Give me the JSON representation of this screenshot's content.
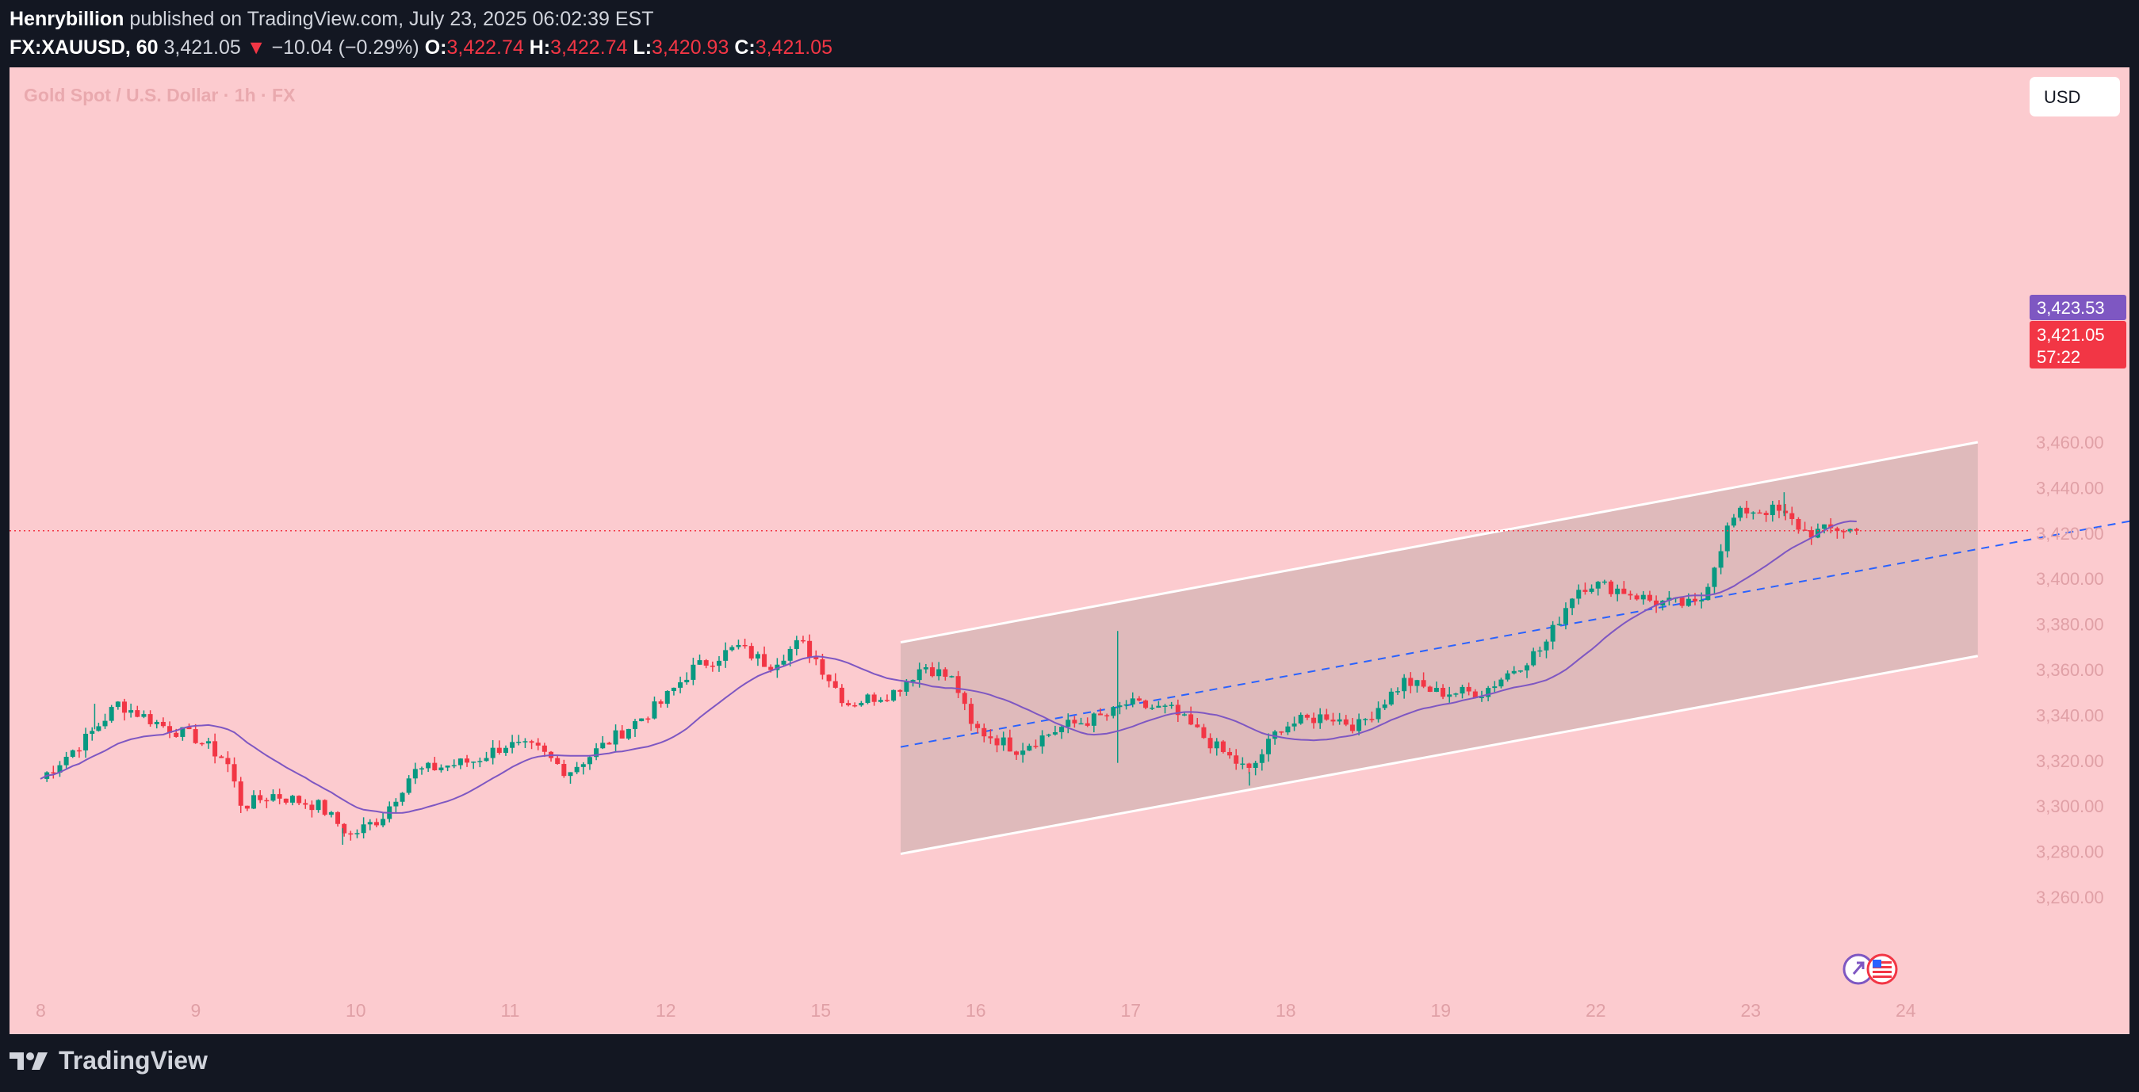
{
  "header": {
    "author": "Henrybillion",
    "published_text": "published on TradingView.com, July 23, 2025 06:02:39 EST",
    "symbol": "FX:XAUUSD, 60",
    "last": "3,421.05",
    "change": "−10.04 (−0.29%)",
    "o_label": "O:",
    "o_value": "3,422.74",
    "h_label": "H:",
    "h_value": "3,422.74",
    "l_label": "L:",
    "l_value": "3,420.93",
    "c_label": "C:",
    "c_value": "3,421.05"
  },
  "chart_title": "Gold Spot / U.S. Dollar · 1h · FX",
  "currency_button": "USD",
  "price_labels": {
    "ma_value": "3,423.53",
    "last_price": "3,421.05",
    "countdown": "57:22"
  },
  "branding": "TradingView",
  "colors": {
    "background": "#fccbcf",
    "outer": "#131722",
    "up": "#089981",
    "down": "#f23645",
    "ma_line": "#7e57c2",
    "channel_fill": "#dbb8b8",
    "midline": "#2962ff",
    "ma_badge": "#7e57c2",
    "last_badge": "#f23645"
  },
  "chart_data": {
    "type": "candlestick",
    "title": "Gold Spot / U.S. Dollar · 1h · FX",
    "yaxis_ticks": [
      3260,
      3280,
      3300,
      3320,
      3340,
      3360,
      3380,
      3400,
      3420,
      3440,
      3460
    ],
    "ytick_labels": [
      "3,260.00",
      "3,280.00",
      "3,300.00",
      "3,320.00",
      "3,340.00",
      "3,360.00",
      "3,380.00",
      "3,400.00",
      "3,420.00",
      "3,440.00",
      "3,460.00"
    ],
    "ylim": [
      3253,
      3475
    ],
    "xtick_labels": [
      "8",
      "9",
      "10",
      "11",
      "12",
      "15",
      "16",
      "17",
      "18",
      "19",
      "22",
      "23",
      "24"
    ],
    "price_path": [
      {
        "day": 0.0,
        "price": 3312
      },
      {
        "day": 0.3,
        "price": 3330
      },
      {
        "day": 0.5,
        "price": 3345
      },
      {
        "day": 0.8,
        "price": 3335
      },
      {
        "day": 1.0,
        "price": 3330
      },
      {
        "day": 1.2,
        "price": 3320
      },
      {
        "day": 1.3,
        "price": 3300
      },
      {
        "day": 1.5,
        "price": 3305
      },
      {
        "day": 1.8,
        "price": 3300
      },
      {
        "day": 2.0,
        "price": 3287
      },
      {
        "day": 2.2,
        "price": 3295
      },
      {
        "day": 2.4,
        "price": 3315
      },
      {
        "day": 2.8,
        "price": 3320
      },
      {
        "day": 3.0,
        "price": 3327
      },
      {
        "day": 3.2,
        "price": 3325
      },
      {
        "day": 3.4,
        "price": 3315
      },
      {
        "day": 3.7,
        "price": 3330
      },
      {
        "day": 4.0,
        "price": 3345
      },
      {
        "day": 4.2,
        "price": 3360
      },
      {
        "day": 4.5,
        "price": 3370
      },
      {
        "day": 4.7,
        "price": 3362
      },
      {
        "day": 4.9,
        "price": 3372
      },
      {
        "day": 5.0,
        "price": 3365
      },
      {
        "day": 5.2,
        "price": 3345
      },
      {
        "day": 5.5,
        "price": 3350
      },
      {
        "day": 5.7,
        "price": 3362
      },
      {
        "day": 5.9,
        "price": 3355
      },
      {
        "day": 6.0,
        "price": 3335
      },
      {
        "day": 6.3,
        "price": 3325
      },
      {
        "day": 6.6,
        "price": 3335
      },
      {
        "day": 6.9,
        "price": 3340
      },
      {
        "day": 7.0,
        "price": 3345
      },
      {
        "day": 7.3,
        "price": 3342
      },
      {
        "day": 7.6,
        "price": 3325
      },
      {
        "day": 7.8,
        "price": 3315
      },
      {
        "day": 8.0,
        "price": 3335
      },
      {
        "day": 8.3,
        "price": 3340
      },
      {
        "day": 8.5,
        "price": 3335
      },
      {
        "day": 8.8,
        "price": 3355
      },
      {
        "day": 9.0,
        "price": 3350
      },
      {
        "day": 9.3,
        "price": 3350
      },
      {
        "day": 9.5,
        "price": 3360
      },
      {
        "day": 9.7,
        "price": 3370
      },
      {
        "day": 9.9,
        "price": 3395
      },
      {
        "day": 10.0,
        "price": 3398
      },
      {
        "day": 10.2,
        "price": 3395
      },
      {
        "day": 10.4,
        "price": 3390
      },
      {
        "day": 10.7,
        "price": 3388
      },
      {
        "day": 10.9,
        "price": 3425
      },
      {
        "day": 11.0,
        "price": 3430
      },
      {
        "day": 11.2,
        "price": 3430
      },
      {
        "day": 11.4,
        "price": 3420
      },
      {
        "day": 11.6,
        "price": 3422
      },
      {
        "day": 11.75,
        "price": 3421
      }
    ],
    "notable_extremes": {
      "high_day17": 3377,
      "low_day17": 3319,
      "high_day23": 3438,
      "low_day18": 3309,
      "low_day9": 3283,
      "high_day8": 3345
    },
    "channel": {
      "start_day": 5.55,
      "end_day": 12.5,
      "upper_start": 3372,
      "upper_end": 3460,
      "lower_start": 3279,
      "lower_end": 3366,
      "mid_start": 3326,
      "mid_end": 3413
    },
    "last_price": 3421.05,
    "ma_last": 3423.53
  }
}
